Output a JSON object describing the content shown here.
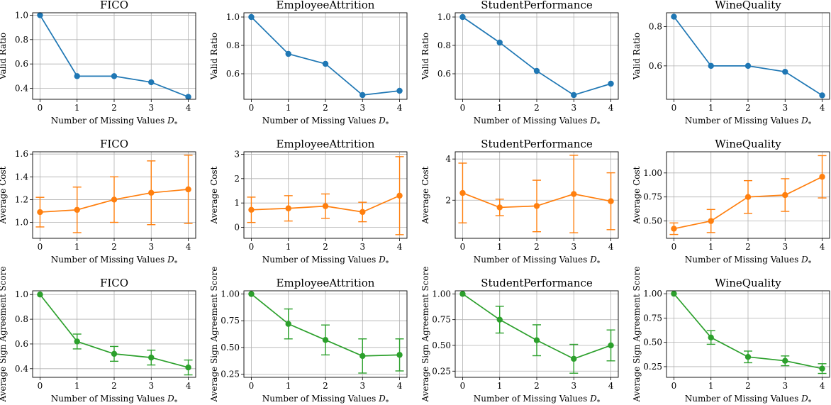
{
  "colors": {
    "valid": "#1f77b4",
    "cost": "#ff7f0e",
    "sign": "#2ca02c",
    "grid": "#b0b0b0",
    "frame": "#000000"
  },
  "chart_data": [
    {
      "type": "line",
      "metric": "valid",
      "title": "FICO",
      "ylabel": "Valid Ratio",
      "xlabel": "Number of Missing Values",
      "xlabel_symbol": "D",
      "xlabel_sub": "*",
      "x": [
        0,
        1,
        2,
        3,
        4
      ],
      "xticks": [
        "0",
        "1",
        "2",
        "3",
        "4"
      ],
      "ylim": [
        0.31,
        1.02
      ],
      "yticks": [
        0.4,
        0.6,
        0.8,
        1.0
      ],
      "ytick_labels": [
        "0.4",
        "0.6",
        "0.8",
        "1.0"
      ],
      "grid": true,
      "series": [
        {
          "values": [
            1.0,
            0.5,
            0.5,
            0.45,
            0.33
          ]
        }
      ]
    },
    {
      "type": "line",
      "metric": "valid",
      "title": "EmployeeAttrition",
      "ylabel": "Valid Ratio",
      "xlabel": "Number of Missing Values",
      "xlabel_symbol": "D",
      "xlabel_sub": "*",
      "x": [
        0,
        1,
        2,
        3,
        4
      ],
      "xticks": [
        "0",
        "1",
        "2",
        "3",
        "4"
      ],
      "ylim": [
        0.42,
        1.03
      ],
      "yticks": [
        0.6,
        0.8,
        1.0
      ],
      "ytick_labels": [
        "0.6",
        "0.8",
        "1.0"
      ],
      "grid": true,
      "series": [
        {
          "values": [
            1.0,
            0.74,
            0.67,
            0.45,
            0.48
          ]
        }
      ]
    },
    {
      "type": "line",
      "metric": "valid",
      "title": "StudentPerformance",
      "ylabel": "Valid Ratio",
      "xlabel": "Number of Missing Values",
      "xlabel_symbol": "D",
      "xlabel_sub": "*",
      "x": [
        0,
        1,
        2,
        3,
        4
      ],
      "xticks": [
        "0",
        "1",
        "2",
        "3",
        "4"
      ],
      "ylim": [
        0.42,
        1.03
      ],
      "yticks": [
        0.6,
        0.8,
        1.0
      ],
      "ytick_labels": [
        "0.6",
        "0.8",
        "1.0"
      ],
      "grid": true,
      "series": [
        {
          "values": [
            1.0,
            0.82,
            0.62,
            0.45,
            0.53
          ]
        }
      ]
    },
    {
      "type": "line",
      "metric": "valid",
      "title": "WineQuality",
      "ylabel": "Valid Ratio",
      "xlabel": "Number of Missing Values",
      "xlabel_symbol": "D",
      "xlabel_sub": "*",
      "x": [
        0,
        1,
        2,
        3,
        4
      ],
      "xticks": [
        "0",
        "1",
        "2",
        "3",
        "4"
      ],
      "ylim": [
        0.43,
        0.87
      ],
      "yticks": [
        0.6,
        0.8
      ],
      "ytick_labels": [
        "0.6",
        "0.8"
      ],
      "grid": true,
      "series": [
        {
          "values": [
            0.85,
            0.6,
            0.6,
            0.57,
            0.45
          ]
        }
      ]
    },
    {
      "type": "line",
      "metric": "cost",
      "title": "FICO",
      "ylabel": "Average Cost",
      "xlabel": "Number of Missing Values",
      "xlabel_symbol": "D",
      "xlabel_sub": "*",
      "x": [
        0,
        1,
        2,
        3,
        4
      ],
      "xticks": [
        "0",
        "1",
        "2",
        "3",
        "4"
      ],
      "ylim": [
        0.86,
        1.62
      ],
      "yticks": [
        1.0,
        1.2,
        1.4,
        1.6
      ],
      "ytick_labels": [
        "1.0",
        "1.2",
        "1.4",
        "1.6"
      ],
      "grid": true,
      "series": [
        {
          "values": [
            1.09,
            1.11,
            1.2,
            1.26,
            1.29
          ],
          "error": [
            0.13,
            0.2,
            0.2,
            0.28,
            0.3
          ]
        }
      ]
    },
    {
      "type": "line",
      "metric": "cost",
      "title": "EmployeeAttrition",
      "ylabel": "Average Cost",
      "xlabel": "Number of Missing Values",
      "xlabel_symbol": "D",
      "xlabel_sub": "*",
      "x": [
        0,
        1,
        2,
        3,
        4
      ],
      "xticks": [
        "0",
        "1",
        "2",
        "3",
        "4"
      ],
      "ylim": [
        -0.45,
        3.1
      ],
      "yticks": [
        0,
        1,
        2,
        3
      ],
      "ytick_labels": [
        "0",
        "1",
        "2",
        "3"
      ],
      "grid": true,
      "series": [
        {
          "values": [
            0.72,
            0.78,
            0.87,
            0.63,
            1.3
          ],
          "error": [
            0.52,
            0.52,
            0.5,
            0.4,
            1.6
          ]
        }
      ]
    },
    {
      "type": "line",
      "metric": "cost",
      "title": "StudentPerformance",
      "ylabel": "Average Cost",
      "xlabel": "Number of Missing Values",
      "xlabel_symbol": "D",
      "xlabel_sub": "*",
      "x": [
        0,
        1,
        2,
        3,
        4
      ],
      "xticks": [
        "0",
        "1",
        "2",
        "3",
        "4"
      ],
      "ylim": [
        0.15,
        4.35
      ],
      "yticks": [
        2,
        4
      ],
      "ytick_labels": [
        "2",
        "4"
      ],
      "grid": true,
      "series": [
        {
          "values": [
            2.35,
            1.65,
            1.72,
            2.3,
            1.95
          ],
          "error": [
            1.45,
            0.4,
            1.25,
            1.88,
            1.38
          ]
        }
      ]
    },
    {
      "type": "line",
      "metric": "cost",
      "title": "WineQuality",
      "ylabel": "Average Cost",
      "xlabel": "Number of Missing Values",
      "xlabel_symbol": "D",
      "xlabel_sub": "*",
      "x": [
        0,
        1,
        2,
        3,
        4
      ],
      "xticks": [
        "0",
        "1",
        "2",
        "3",
        "4"
      ],
      "ylim": [
        0.32,
        1.22
      ],
      "yticks": [
        0.5,
        0.75,
        1.0
      ],
      "ytick_labels": [
        "0.50",
        "0.75",
        "1.00"
      ],
      "grid": true,
      "series": [
        {
          "values": [
            0.42,
            0.5,
            0.75,
            0.77,
            0.96
          ],
          "error": [
            0.06,
            0.12,
            0.17,
            0.17,
            0.22
          ]
        }
      ]
    },
    {
      "type": "line",
      "metric": "sign",
      "title": "FICO",
      "ylabel": "Average Sign Agreement Score",
      "xlabel": "Number of Missing Values",
      "xlabel_symbol": "D",
      "xlabel_sub": "*",
      "x": [
        0,
        1,
        2,
        3,
        4
      ],
      "xticks": [
        "0",
        "1",
        "2",
        "3",
        "4"
      ],
      "ylim": [
        0.33,
        1.03
      ],
      "yticks": [
        0.4,
        0.6,
        0.8,
        1.0
      ],
      "ytick_labels": [
        "0.4",
        "0.6",
        "0.8",
        "1.0"
      ],
      "grid": true,
      "series": [
        {
          "values": [
            1.0,
            0.62,
            0.52,
            0.49,
            0.41
          ],
          "error": [
            0,
            0.06,
            0.06,
            0.06,
            0.06
          ]
        }
      ]
    },
    {
      "type": "line",
      "metric": "sign",
      "title": "EmployeeAttrition",
      "ylabel": "Average Sign Agreement Score",
      "xlabel": "Number of Missing Values",
      "xlabel_symbol": "D",
      "xlabel_sub": "*",
      "x": [
        0,
        1,
        2,
        3,
        4
      ],
      "xticks": [
        "0",
        "1",
        "2",
        "3",
        "4"
      ],
      "ylim": [
        0.22,
        1.03
      ],
      "yticks": [
        0.25,
        0.5,
        0.75,
        1.0
      ],
      "ytick_labels": [
        "0.25",
        "0.50",
        "0.75",
        "1.00"
      ],
      "grid": true,
      "series": [
        {
          "values": [
            1.0,
            0.72,
            0.57,
            0.42,
            0.43
          ],
          "error": [
            0,
            0.14,
            0.14,
            0.16,
            0.15
          ]
        }
      ]
    },
    {
      "type": "line",
      "metric": "sign",
      "title": "StudentPerformance",
      "ylabel": "Average Sign Agreement Score",
      "xlabel": "Number of Missing Values",
      "xlabel_symbol": "D",
      "xlabel_sub": "*",
      "x": [
        0,
        1,
        2,
        3,
        4
      ],
      "xticks": [
        "0",
        "1",
        "2",
        "3",
        "4"
      ],
      "ylim": [
        0.19,
        1.03
      ],
      "yticks": [
        0.25,
        0.5,
        0.75,
        1.0
      ],
      "ytick_labels": [
        "0.25",
        "0.50",
        "0.75",
        "1.00"
      ],
      "grid": true,
      "series": [
        {
          "values": [
            1.0,
            0.75,
            0.55,
            0.37,
            0.5
          ],
          "error": [
            0,
            0.13,
            0.15,
            0.14,
            0.15
          ]
        }
      ]
    },
    {
      "type": "line",
      "metric": "sign",
      "title": "WineQuality",
      "ylabel": "Average Sign Agreement Score",
      "xlabel": "Number of Missing Values",
      "xlabel_symbol": "D",
      "xlabel_sub": "*",
      "x": [
        0,
        1,
        2,
        3,
        4
      ],
      "xticks": [
        "0",
        "1",
        "2",
        "3",
        "4"
      ],
      "ylim": [
        0.14,
        1.03
      ],
      "yticks": [
        0.25,
        0.5,
        0.75,
        1.0
      ],
      "ytick_labels": [
        "0.25",
        "0.50",
        "0.75",
        "1.00"
      ],
      "grid": true,
      "series": [
        {
          "values": [
            1.0,
            0.55,
            0.35,
            0.31,
            0.23
          ],
          "error": [
            0,
            0.07,
            0.06,
            0.05,
            0.05
          ]
        }
      ]
    }
  ]
}
